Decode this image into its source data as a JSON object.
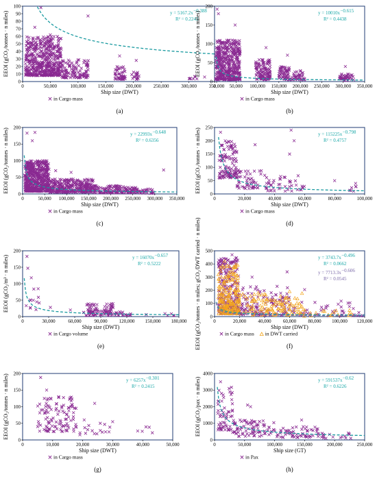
{
  "colors": {
    "cross": "#8a2a92",
    "tri": "#f2a51f",
    "trend": "#1a9aa0",
    "trend2": "#7b6aa8",
    "eq": "#16a6a6",
    "frame": "#1f3b73"
  },
  "chart_data": [
    {
      "type": "scatter",
      "panel": "(a)",
      "xlabel": "Ship size (DWT)",
      "ylabel": "EEOI (gCO₂/tonnes · n miles)",
      "xlim": [
        0,
        350000
      ],
      "ylim": [
        0,
        100
      ],
      "xticks": [
        "0",
        "50,000",
        "100,000",
        "150,000",
        "200,000",
        "250,000",
        "300,000",
        "350,000"
      ],
      "yticks": [
        "0",
        "10",
        "20",
        "30",
        "40",
        "50",
        "60",
        "70",
        "80",
        "90",
        "100"
      ],
      "series": [
        {
          "name": "in Cargo mass",
          "marker": "x",
          "clusters": [
            [
              5000,
              70000,
              8,
              60,
              520
            ],
            [
              70000,
              120000,
              5,
              30,
              120
            ],
            [
              165000,
              185000,
              3,
              20,
              50
            ],
            [
              195000,
              210000,
              3,
              14,
              18
            ],
            [
              300000,
              330000,
              3,
              8,
              8
            ]
          ],
          "outliers": [
            [
              33000,
              98
            ],
            [
              118000,
              87
            ],
            [
              175000,
              34
            ],
            [
              205000,
              28
            ],
            [
              50000,
              62
            ],
            [
              22000,
              72
            ]
          ],
          "trend": {
            "a": 5167.2,
            "b": -0.388
          }
        }
      ],
      "equation": "y = 5167.2x",
      "exponent": "−0.388",
      "r2": "R² = 0.2243"
    },
    {
      "type": "scatter",
      "panel": "(b)",
      "xlabel": "Ship size (DWT)",
      "ylabel": "EEOI (gCO₂/tonnes · n miles)",
      "xlim": [
        0,
        350000
      ],
      "ylim": [
        0,
        200
      ],
      "xticks": [
        "0",
        "50,000",
        "100,000",
        "150,000",
        "200,000",
        "250,000",
        "300,000",
        "350,000"
      ],
      "yticks": [
        "0",
        "50",
        "100",
        "150",
        "200"
      ],
      "series": [
        {
          "name": "in Cargo mass",
          "marker": "x",
          "clusters": [
            [
              3000,
              60000,
              5,
              110,
              480
            ],
            [
              95000,
              130000,
              5,
              60,
              120
            ],
            [
              150000,
              175000,
              5,
              40,
              70
            ],
            [
              180000,
              210000,
              5,
              30,
              40
            ],
            [
              290000,
              325000,
              3,
              20,
              40
            ]
          ],
          "outliers": [
            [
              6000,
              192
            ],
            [
              9000,
              180
            ],
            [
              48000,
              150
            ],
            [
              120000,
              90
            ],
            [
              170000,
              70
            ],
            [
              305000,
              40
            ]
          ],
          "trend": {
            "a": 10010,
            "b": -0.615
          }
        }
      ],
      "equation": "y = 10010x",
      "exponent": "−0.615",
      "r2": "R² = 0.4438"
    },
    {
      "type": "scatter",
      "panel": "(c)",
      "xlabel": "Ship size (DWT)",
      "ylabel": "EEOI (gCO₂/tonnes · n miles)",
      "xlim": [
        0,
        350000
      ],
      "ylim": [
        0,
        200
      ],
      "xticks": [
        "0",
        "50,000",
        "100,000",
        "150,000",
        "200,000",
        "250,000",
        "300,000",
        "350,000"
      ],
      "yticks": [
        "0",
        "50",
        "100",
        "150",
        "200"
      ],
      "series": [
        {
          "name": "in Cargo mass",
          "marker": "x",
          "clusters": [
            [
              5000,
              60000,
              8,
              100,
              600
            ],
            [
              60000,
              160000,
              5,
              45,
              350
            ],
            [
              160000,
              260000,
              3,
              25,
              150
            ],
            [
              260000,
              300000,
              2,
              15,
              30
            ]
          ],
          "outliers": [
            [
              10000,
              183
            ],
            [
              28000,
              185
            ],
            [
              22000,
              160
            ],
            [
              320000,
              72
            ],
            [
              110000,
              65
            ],
            [
              75000,
              70
            ]
          ],
          "trend": {
            "a": 22993,
            "b": -0.648
          }
        }
      ],
      "equation": "y = 22993x",
      "exponent": "−0.648",
      "r2": "R² = 0.6356"
    },
    {
      "type": "scatter",
      "panel": "(d)",
      "xlabel": "Ship size (DWT)",
      "ylabel": "EEOI (gCO₂/tonnes · n miles)",
      "xlim": [
        0,
        100000
      ],
      "ylim": [
        0,
        250
      ],
      "xticks": [
        "0",
        "20,000",
        "40,000",
        "60,000",
        "80,000",
        "100,000"
      ],
      "yticks": [
        "0",
        "50",
        "100",
        "150",
        "200",
        "250"
      ],
      "series": [
        {
          "name": "in Cargo mass",
          "marker": "x",
          "clusters": [
            [
              3000,
              15000,
              60,
              200,
              120
            ],
            [
              15000,
              35000,
              20,
              90,
              60
            ],
            [
              35000,
              60000,
              10,
              70,
              40
            ],
            [
              90000,
              97000,
              10,
              40,
              8
            ]
          ],
          "outliers": [
            [
              4000,
              232
            ],
            [
              51000,
              240
            ],
            [
              27000,
              185
            ],
            [
              50000,
              150
            ],
            [
              53000,
              200
            ],
            [
              80000,
              50
            ]
          ],
          "trend": {
            "a": 115225,
            "b": -0.798
          }
        }
      ],
      "equation": "y = 115225x",
      "exponent": "−0.798",
      "r2": "R² = 0.4757"
    },
    {
      "type": "scatter",
      "panel": "(e)",
      "xlabel": "Ship size (DWT)",
      "ylabel": "EEOI (gCO₂/m³ · n miles)",
      "xlim": [
        0,
        180000
      ],
      "ylim": [
        0,
        200
      ],
      "xticks": [
        "0",
        "30,000",
        "60,000",
        "90,000",
        "120,000",
        "150,000",
        "180,000"
      ],
      "yticks": [
        "0",
        "50",
        "100",
        "150",
        "200"
      ],
      "series": [
        {
          "name": "in Cargo volume",
          "marker": "x",
          "clusters": [
            [
              4000,
              20000,
              20,
              100,
              12
            ],
            [
              70000,
              105000,
              3,
              40,
              90
            ],
            [
              105000,
              125000,
              3,
              15,
              20
            ],
            [
              140000,
              175000,
              3,
              12,
              6
            ]
          ],
          "outliers": [
            [
              5000,
              183
            ],
            [
              6000,
              147
            ],
            [
              10000,
              118
            ],
            [
              32000,
              28
            ],
            [
              55000,
              20
            ]
          ],
          "trend": {
            "a": 16070,
            "b": -0.657
          }
        }
      ],
      "equation": "y = 16070x",
      "exponent": "−0.657",
      "r2": "R² = 0.5222"
    },
    {
      "type": "scatter",
      "panel": "(f)",
      "xlabel": "Ship size (DWT)",
      "ylabel": "EEOI (gCO₂/tonnes · n miles; gCO₂/DWT carried · n miles)",
      "xlim": [
        0,
        120000
      ],
      "ylim": [
        0,
        500
      ],
      "xticks": [
        "0",
        "20,000",
        "40,000",
        "60,000",
        "80,000",
        "100,000",
        "120,000"
      ],
      "yticks": [
        "0",
        "100",
        "200",
        "300",
        "400",
        "500"
      ],
      "series": [
        {
          "name": "in Cargo mass",
          "marker": "x",
          "clusters": [
            [
              3000,
              20000,
              20,
              450,
              260
            ],
            [
              20000,
              60000,
              10,
              230,
              140
            ],
            [
              60000,
              120000,
              5,
              120,
              50
            ]
          ],
          "outliers": [
            [
              14000,
              470
            ],
            [
              30000,
              300
            ],
            [
              50000,
              230
            ],
            [
              72000,
              205
            ],
            [
              58000,
              340
            ]
          ],
          "trend": {
            "a": 3743.7,
            "b": -0.496
          }
        },
        {
          "name": "in DWT carried",
          "marker": "triangle",
          "clusters": [
            [
              3000,
              20000,
              20,
              400,
              220
            ],
            [
              20000,
              70000,
              10,
              180,
              120
            ],
            [
              70000,
              110000,
              3,
              60,
              20
            ]
          ],
          "outliers": [
            [
              8000,
              420
            ],
            [
              12000,
              380
            ],
            [
              60000,
              190
            ]
          ],
          "trend": {
            "a": 7713.3,
            "b": -0.606
          }
        }
      ],
      "equation": "y = 3743.7x",
      "exponent": "−0.496",
      "r2": "R² = 0.0662",
      "equation2": "y = 7713.3x",
      "exponent2": "−0.606",
      "r2_2": "R² = 0.0545"
    },
    {
      "type": "scatter",
      "panel": "(g)",
      "xlabel": "Ship size (DWT)",
      "ylabel": "EEOI (gCO₂/tonnes · n miles)",
      "xlim": [
        0,
        50000
      ],
      "ylim": [
        0,
        200
      ],
      "xticks": [
        "0",
        "10,000",
        "20,000",
        "30,000",
        "40,000",
        "50,000"
      ],
      "yticks": [
        "0",
        "50",
        "100",
        "150",
        "200"
      ],
      "series": [
        {
          "name": "in Cargo mass",
          "marker": "x",
          "clusters": [
            [
              5000,
              18000,
              25,
              130,
              110
            ],
            [
              18000,
              30000,
              15,
              70,
              18
            ],
            [
              38000,
              44000,
              20,
              40,
              5
            ]
          ],
          "outliers": [
            [
              6000,
              188
            ],
            [
              24000,
              110
            ],
            [
              8000,
              150
            ],
            [
              12000,
              130
            ]
          ],
          "trend": {
            "a": 6257,
            "b": -0.301
          }
        }
      ],
      "equation": "y = 6257x",
      "exponent": "−0.301",
      "r2": "R² = 0.2415"
    },
    {
      "type": "scatter",
      "panel": "(h)",
      "xlabel": "Ship size (GT)",
      "ylabel": "EEOI (gCO₂/pax · n miles)",
      "xlim": [
        0,
        250000
      ],
      "ylim": [
        0,
        4000
      ],
      "xticks": [
        "0",
        "50,000",
        "100,000",
        "150,000",
        "200,000",
        "250,000"
      ],
      "yticks": [
        "0",
        "1000",
        "2000",
        "3000",
        "4000"
      ],
      "series": [
        {
          "name": "in Pax",
          "marker": "x",
          "clusters": [
            [
              5000,
              30000,
              600,
              3300,
              60
            ],
            [
              30000,
              100000,
              200,
              1200,
              80
            ],
            [
              100000,
              180000,
              150,
              800,
              60
            ],
            [
              180000,
              230000,
              100,
              450,
              15
            ]
          ],
          "outliers": [
            [
              10000,
              3500
            ],
            [
              55000,
              2100
            ],
            [
              60000,
              2000
            ],
            [
              145000,
              1200
            ]
          ],
          "trend": {
            "a": 591537,
            "b": -0.62
          }
        }
      ],
      "equation": "y = 591537x",
      "exponent": "−0.62",
      "r2": "R² = 0.6226"
    }
  ]
}
